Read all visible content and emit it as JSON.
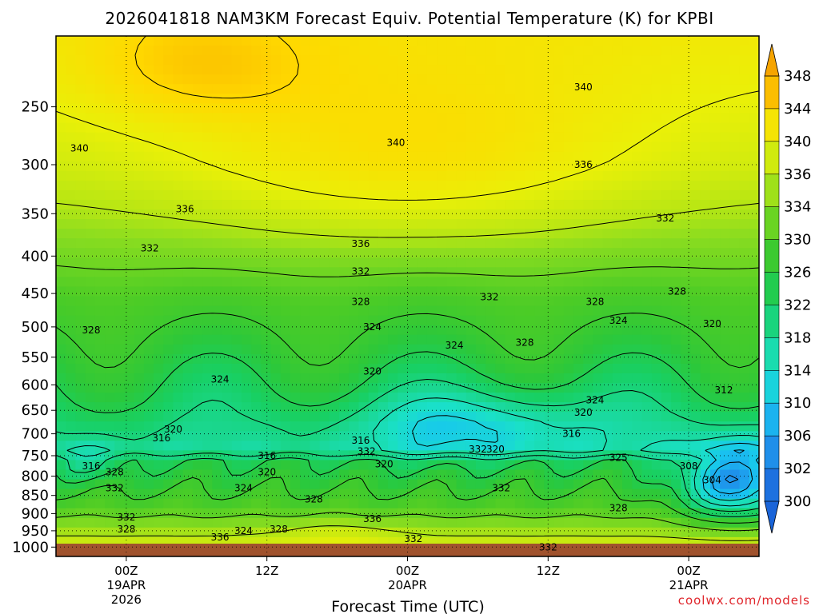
{
  "title": "2026041818 NAM3KM Forecast Equiv. Potential Temperature (K) for KPBI",
  "credit": "coolwx.com/models",
  "colors": {
    "ground": "#a0522d",
    "stops": [
      {
        "v": 300,
        "c": "#1a64d8"
      },
      {
        "v": 302,
        "c": "#1f7ee6"
      },
      {
        "v": 306,
        "c": "#1ea0ee"
      },
      {
        "v": 310,
        "c": "#18c6f0"
      },
      {
        "v": 314,
        "c": "#1ae0c8"
      },
      {
        "v": 318,
        "c": "#1ad896"
      },
      {
        "v": 322,
        "c": "#18d064"
      },
      {
        "v": 326,
        "c": "#2cc83a"
      },
      {
        "v": 330,
        "c": "#4ccc26"
      },
      {
        "v": 334,
        "c": "#88dc20"
      },
      {
        "v": 336,
        "c": "#b6e614"
      },
      {
        "v": 340,
        "c": "#eaf008"
      },
      {
        "v": 344,
        "c": "#ffd800"
      },
      {
        "v": 348,
        "c": "#f6a400"
      }
    ]
  },
  "chart_data": {
    "type": "heatmap",
    "title": "2026041818 NAM3KM Forecast Equiv. Potential Temperature (K) for KPBI",
    "xlabel": "Forecast Time (UTC)",
    "ylabel": "",
    "x_ticks": [
      {
        "hour": 6,
        "lines": [
          "00Z",
          "19APR",
          "2026"
        ]
      },
      {
        "hour": 18,
        "lines": [
          "12Z"
        ]
      },
      {
        "hour": 30,
        "lines": [
          "00Z",
          "20APR"
        ]
      },
      {
        "hour": 42,
        "lines": [
          "12Z"
        ]
      },
      {
        "hour": 54,
        "lines": [
          "00Z",
          "21APR"
        ]
      }
    ],
    "xlim": [
      0,
      60
    ],
    "y_ticks": [
      250,
      300,
      350,
      400,
      450,
      500,
      550,
      600,
      650,
      700,
      750,
      800,
      850,
      900,
      950,
      1000
    ],
    "ylim_hpa": [
      1030,
      200
    ],
    "y_scale": "log",
    "grid": true,
    "colorbar": {
      "levels": [
        300,
        302,
        306,
        310,
        314,
        318,
        322,
        326,
        330,
        334,
        336,
        340,
        344,
        348
      ],
      "labels": [
        "300",
        "302",
        "306",
        "310",
        "314",
        "318",
        "322",
        "326",
        "330",
        "334",
        "336",
        "340",
        "344",
        "348"
      ],
      "units": "K"
    },
    "contour_labels": [
      {
        "text": "340",
        "hour": 2,
        "hpa": 285
      },
      {
        "text": "340",
        "hour": 29,
        "hpa": 280
      },
      {
        "text": "340",
        "hour": 45,
        "hpa": 235
      },
      {
        "text": "336",
        "hour": 45,
        "hpa": 300
      },
      {
        "text": "336",
        "hour": 11,
        "hpa": 345
      },
      {
        "text": "336",
        "hour": 26,
        "hpa": 385
      },
      {
        "text": "332",
        "hour": 8,
        "hpa": 390
      },
      {
        "text": "332",
        "hour": 26,
        "hpa": 420
      },
      {
        "text": "332",
        "hour": 52,
        "hpa": 355
      },
      {
        "text": "332",
        "hour": 37,
        "hpa": 455
      },
      {
        "text": "328",
        "hour": 3,
        "hpa": 505
      },
      {
        "text": "328",
        "hour": 26,
        "hpa": 462
      },
      {
        "text": "328",
        "hour": 46,
        "hpa": 462
      },
      {
        "text": "328",
        "hour": 53,
        "hpa": 447
      },
      {
        "text": "328",
        "hour": 40,
        "hpa": 525
      },
      {
        "text": "324",
        "hour": 27,
        "hpa": 500
      },
      {
        "text": "324",
        "hour": 34,
        "hpa": 530
      },
      {
        "text": "324",
        "hour": 48,
        "hpa": 490
      },
      {
        "text": "324",
        "hour": 14,
        "hpa": 590
      },
      {
        "text": "324",
        "hour": 46,
        "hpa": 630
      },
      {
        "text": "320",
        "hour": 56,
        "hpa": 495
      },
      {
        "text": "320",
        "hour": 27,
        "hpa": 575
      },
      {
        "text": "320",
        "hour": 45,
        "hpa": 655
      },
      {
        "text": "320",
        "hour": 10,
        "hpa": 690
      },
      {
        "text": "316",
        "hour": 9,
        "hpa": 710
      },
      {
        "text": "316",
        "hour": 44,
        "hpa": 700
      },
      {
        "text": "316",
        "hour": 18,
        "hpa": 750
      },
      {
        "text": "316",
        "hour": 26,
        "hpa": 715
      },
      {
        "text": "316",
        "hour": 3,
        "hpa": 775
      },
      {
        "text": "312",
        "hour": 57,
        "hpa": 610
      },
      {
        "text": "332",
        "hour": 26.5,
        "hpa": 740
      },
      {
        "text": "332",
        "hour": 36,
        "hpa": 735
      },
      {
        "text": "320",
        "hour": 37.5,
        "hpa": 735
      },
      {
        "text": "325",
        "hour": 48,
        "hpa": 755
      },
      {
        "text": "320",
        "hour": 18,
        "hpa": 790
      },
      {
        "text": "320",
        "hour": 28,
        "hpa": 770
      },
      {
        "text": "328",
        "hour": 5,
        "hpa": 790
      },
      {
        "text": "332",
        "hour": 5,
        "hpa": 830
      },
      {
        "text": "324",
        "hour": 16,
        "hpa": 830
      },
      {
        "text": "328",
        "hour": 22,
        "hpa": 860
      },
      {
        "text": "308",
        "hour": 54,
        "hpa": 775
      },
      {
        "text": "304",
        "hour": 56,
        "hpa": 810
      },
      {
        "text": "332",
        "hour": 38,
        "hpa": 830
      },
      {
        "text": "328",
        "hour": 48,
        "hpa": 885
      },
      {
        "text": "332",
        "hour": 6,
        "hpa": 910
      },
      {
        "text": "328",
        "hour": 6,
        "hpa": 945
      },
      {
        "text": "324",
        "hour": 16,
        "hpa": 950
      },
      {
        "text": "328",
        "hour": 19,
        "hpa": 945
      },
      {
        "text": "336",
        "hour": 14,
        "hpa": 970
      },
      {
        "text": "336",
        "hour": 27,
        "hpa": 915
      },
      {
        "text": "332",
        "hour": 30.5,
        "hpa": 975
      },
      {
        "text": "332",
        "hour": 42,
        "hpa": 1000
      }
    ]
  }
}
